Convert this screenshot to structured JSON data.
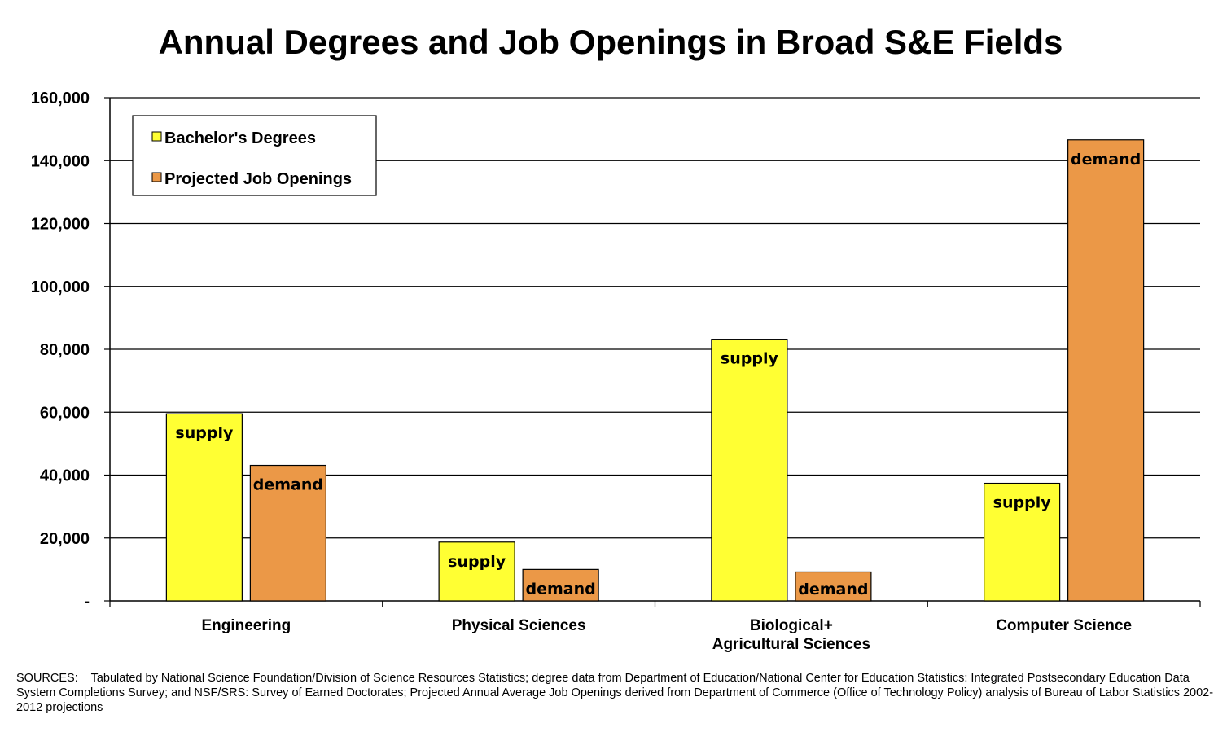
{
  "chart_data": {
    "type": "bar",
    "title": "Annual Degrees and Job Openings in Broad S&E Fields",
    "categories": [
      "Engineering",
      "Physical Sciences",
      "Biological+ Agricultural Sciences",
      "Computer Science"
    ],
    "category_lines": [
      [
        "Engineering"
      ],
      [
        "Physical Sciences"
      ],
      [
        "Biological+",
        "Agricultural Sciences"
      ],
      [
        "Computer Science"
      ]
    ],
    "series": [
      {
        "name": "Bachelor's Degrees",
        "values": [
          59500,
          18700,
          83200,
          37400
        ],
        "color": "#ffff33",
        "bar_label": "supply"
      },
      {
        "name": "Projected Job Openings",
        "values": [
          43100,
          10000,
          9200,
          146600
        ],
        "color": "#eb9847",
        "bar_label": "demand"
      }
    ],
    "ylim": [
      0,
      160000
    ],
    "yticks": [
      0,
      20000,
      40000,
      60000,
      80000,
      100000,
      120000,
      140000,
      160000
    ],
    "ytick_labels": [
      "-",
      "20,000",
      "40,000",
      "60,000",
      "80,000",
      "100,000",
      "120,000",
      "140,000",
      "160,000"
    ],
    "xlabel": "",
    "ylabel": "",
    "grid": true,
    "legend_position": "top-left"
  },
  "sources_note": "SOURCES:    Tabulated by National Science Foundation/Division of Science Resources Statistics; degree data from Department of Education/National Center for Education Statistics:  Integrated Postsecondary Education Data System Completions Survey; and NSF/SRS: Survey of Earned Doctorates; Projected Annual Average Job Openings derived from Department of Commerce (Office of Technology Policy) analysis of Bureau of Labor Statistics 2002-2012 projections"
}
